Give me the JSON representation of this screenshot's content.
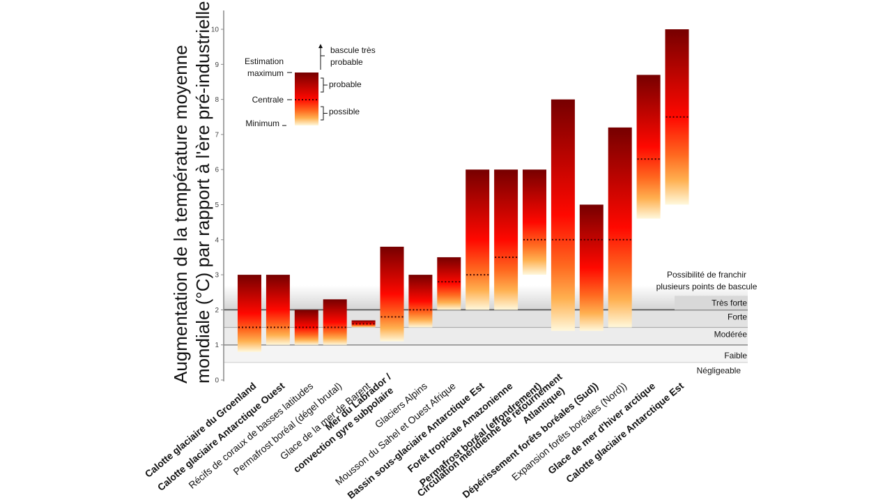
{
  "chart_data": {
    "type": "bar",
    "subtype": "floating-range-bar",
    "ylabel_lines": [
      "Augmentation de la température moyenne",
      "mondiale (°C) par rapport à l'ère pré-industrielle"
    ],
    "ylim": [
      0,
      10
    ],
    "yticks": [
      0,
      1,
      2,
      3,
      4,
      5,
      6,
      7,
      8,
      9,
      10
    ],
    "categories": [
      {
        "label": "Calotte glaciaire du Groenland",
        "bold": true,
        "min": 0.8,
        "central": 1.5,
        "max": 3.0
      },
      {
        "label": "Calotte glaciaire Antarctique Ouest",
        "bold": true,
        "min": 1.0,
        "central": 1.5,
        "max": 3.0
      },
      {
        "label": "Récifs de coraux de basses latitudes",
        "bold": false,
        "min": 1.0,
        "central": 1.5,
        "max": 2.0
      },
      {
        "label": "Permafrost boréal  (dégel brutal)",
        "bold": false,
        "min": 1.0,
        "central": 1.5,
        "max": 2.3
      },
      {
        "label": "Glace de la mer de Barent",
        "bold": false,
        "min": 1.5,
        "central": 1.6,
        "max": 1.7
      },
      {
        "label": "Mer du Labrador /|convection gyre subpolaire",
        "bold": true,
        "min": 1.1,
        "central": 1.8,
        "max": 3.8
      },
      {
        "label": "Glaciers Alpins",
        "bold": false,
        "min": 1.5,
        "central": 2.0,
        "max": 3.0
      },
      {
        "label": "Mousson du Sahel et Ouest Afrique",
        "bold": false,
        "min": 2.0,
        "central": 2.8,
        "max": 3.5
      },
      {
        "label": "Bassin sous-glaciaire Antarctique Est",
        "bold": true,
        "min": 2.0,
        "central": 3.0,
        "max": 6.0
      },
      {
        "label": "Forêt tropicale Amazonienne",
        "bold": true,
        "min": 2.0,
        "central": 3.5,
        "max": 6.0
      },
      {
        "label": "Permafrost boréal (effondrement)",
        "bold": true,
        "min": 3.0,
        "central": 4.0,
        "max": 6.0
      },
      {
        "label": "Circulation méridienne de retournement|Atlantique)",
        "bold": true,
        "min": 1.4,
        "central": 4.0,
        "max": 8.0
      },
      {
        "label": "Dépérissement forêts boréales (Sud))",
        "bold": true,
        "min": 1.4,
        "central": 4.0,
        "max": 5.0
      },
      {
        "label": "Expansion forêts boréales (Nord))",
        "bold": false,
        "min": 1.5,
        "central": 4.0,
        "max": 7.2
      },
      {
        "label": "Glace de mer d'hiver arctique",
        "bold": true,
        "min": 4.6,
        "central": 6.3,
        "max": 8.7
      },
      {
        "label": "Calotte glaciaire Antarctique Est",
        "bold": true,
        "min": 5.0,
        "central": 7.5,
        "max": 10.0
      }
    ],
    "risk_bands": {
      "title_lines": [
        "Possibilité  de franchir",
        "plusieurs  points de bascule"
      ],
      "bands": [
        {
          "label": "Négligeable",
          "from": 0.0,
          "to": 0.5
        },
        {
          "label": "Faible",
          "from": 0.5,
          "to": 1.0
        },
        {
          "label": "Modérée",
          "from": 1.0,
          "to": 1.5
        },
        {
          "label": "Forte",
          "from": 1.5,
          "to": 2.0
        },
        {
          "label": "Très forte",
          "from": 2.0,
          "to": 2.5
        }
      ]
    },
    "legend": {
      "labels_left": {
        "max": "Estimation|maximum",
        "central": "Centrale",
        "min": "Minimum"
      },
      "labels_right": {
        "very_likely": "bascule très|probable",
        "likely": "probable",
        "possible": "possible"
      }
    },
    "colors": {
      "bar_top": "#7a0000",
      "bar_mid": "#ff0a00",
      "bar_orange": "#ff8a30",
      "bar_bottom": "#fff4c8",
      "axis": "#888888",
      "band_line_dark": "#555555",
      "band_line_light": "#aaaaaa"
    }
  }
}
